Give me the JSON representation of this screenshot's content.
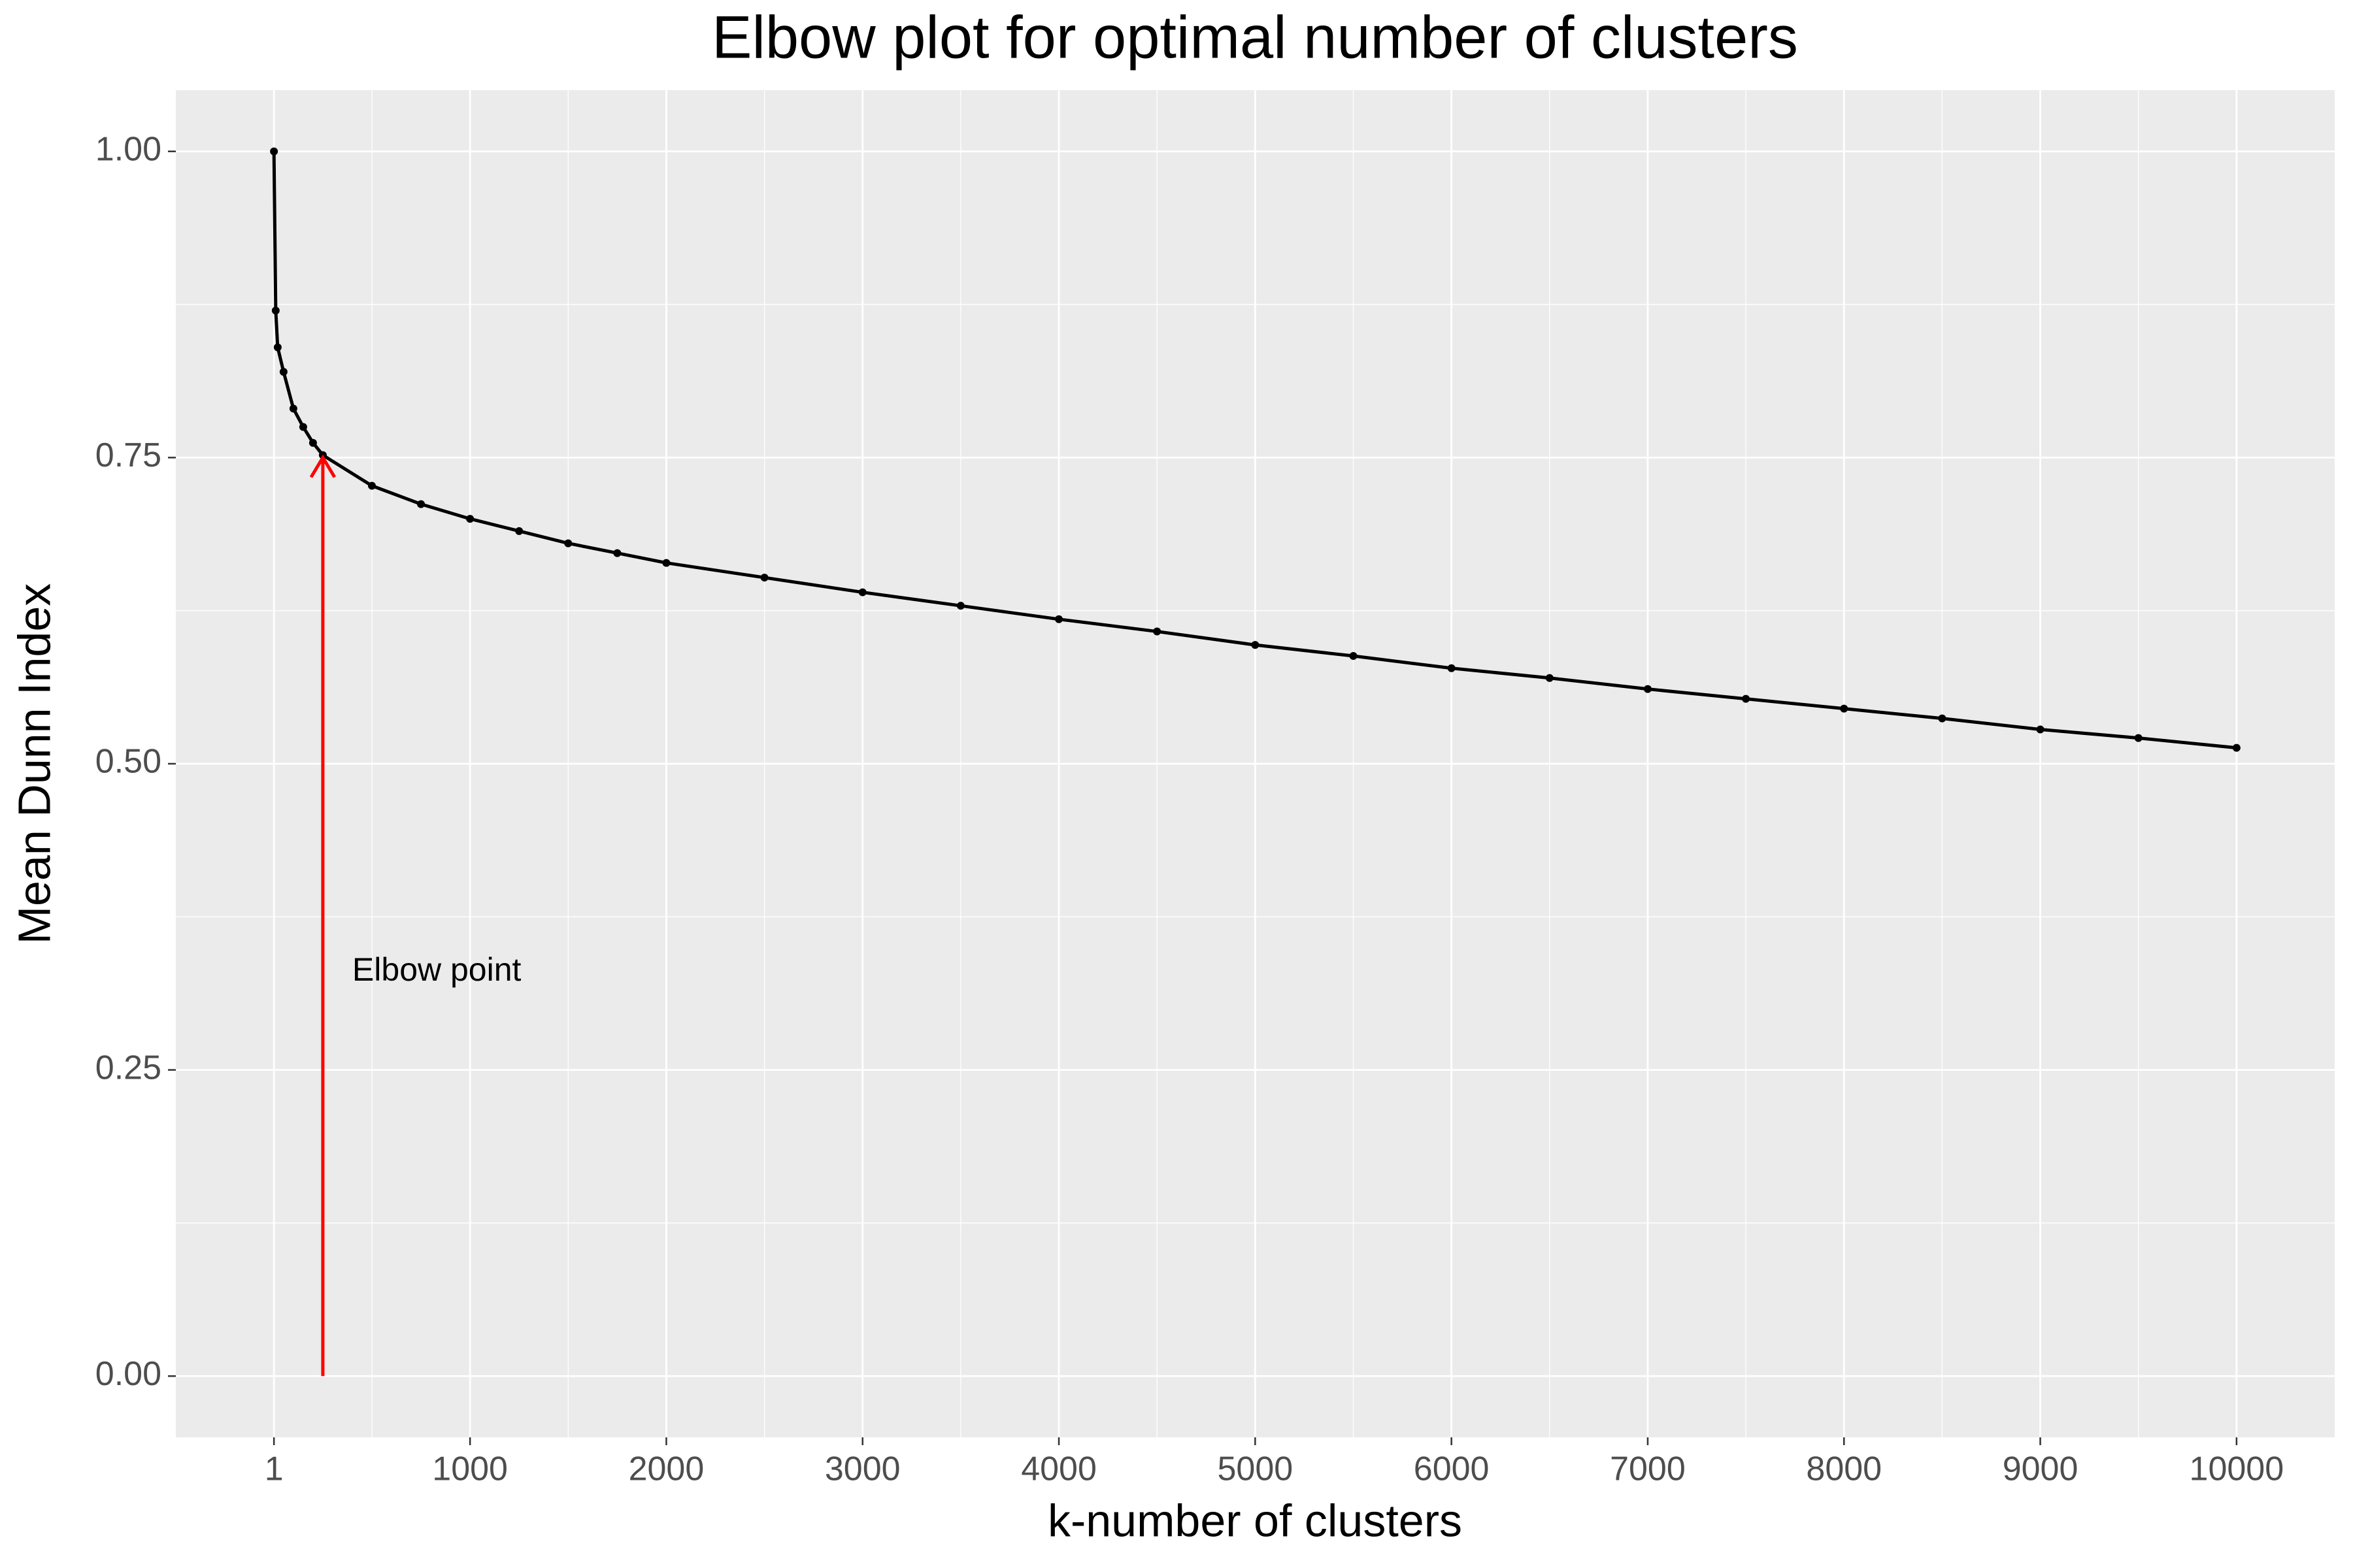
{
  "chart_data": {
    "type": "line",
    "title": "Elbow plot for optimal number of clusters",
    "x_label": "k-number of clusters",
    "y_label": "Mean Dunn Index",
    "series": [
      {
        "color": "#000000",
        "x": [
          1,
          10,
          20,
          50,
          100,
          150,
          200,
          250,
          500,
          750,
          1000,
          1250,
          1500,
          1750,
          2000,
          2500,
          3000,
          3500,
          4000,
          4500,
          5000,
          5500,
          6000,
          6500,
          7000,
          7500,
          8000,
          8500,
          9000,
          9500,
          10000
        ],
        "values": [
          1.0,
          0.87,
          0.84,
          0.82,
          0.79,
          0.775,
          0.762,
          0.752,
          0.727,
          0.712,
          0.7,
          0.69,
          0.68,
          0.672,
          0.664,
          0.652,
          0.64,
          0.629,
          0.618,
          0.608,
          0.597,
          0.588,
          0.578,
          0.57,
          0.561,
          0.553,
          0.545,
          0.537,
          0.528,
          0.521,
          0.513
        ]
      }
    ],
    "annotation": {
      "text": "Elbow point",
      "color": "#ff0000",
      "arrow_x": 250,
      "arrow_from": 0,
      "arrow_to": 0.75
    },
    "xlim": [
      -499,
      10500
    ],
    "xticks": [
      1,
      1000,
      2000,
      3000,
      4000,
      5000,
      6000,
      7000,
      8000,
      9000,
      10000
    ],
    "ylim": [
      -0.05,
      1.05
    ],
    "yticks": [
      {
        "value": 0,
        "label": "0.00"
      },
      {
        "value": 0.25,
        "label": "0.25"
      },
      {
        "value": 0.5,
        "label": "0.50"
      },
      {
        "value": 0.75,
        "label": "0.75"
      },
      {
        "value": 1,
        "label": "1.00"
      }
    ],
    "grid": true,
    "minor_grid": true
  }
}
